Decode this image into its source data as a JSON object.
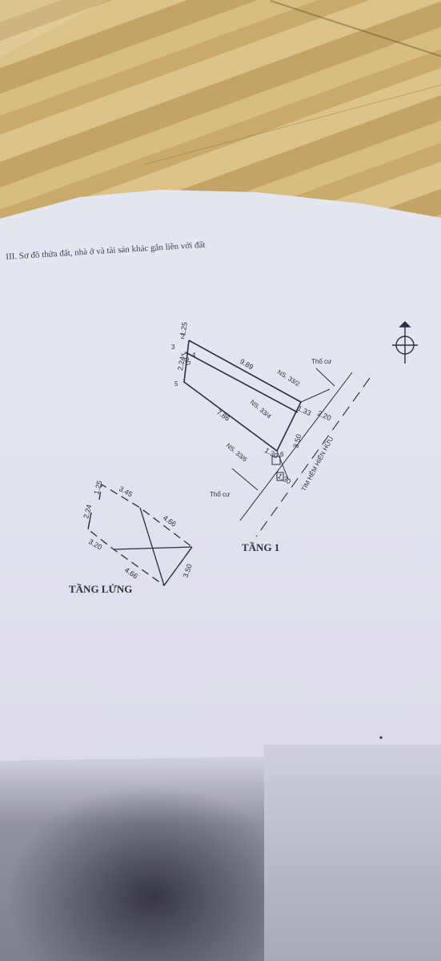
{
  "header_text": "III. Sơ đồ thửa đất, nhà ở và tài sản khác gắn liền với đất",
  "ground_floor": {
    "title": "TẦNG 1",
    "road_label": "TIM HẺM HIẾN HỮU",
    "neighbor_labels": [
      "NS. 33/2",
      "NS. 33/4",
      "NS. 33/6"
    ],
    "land_labels": [
      "Thổ cư",
      "Thổ cư"
    ],
    "vertex_labels": [
      "2",
      "3",
      "4",
      "5",
      "6"
    ],
    "dimensions": [
      "1.25",
      "1.80",
      "2.24",
      "9.89",
      "7.86",
      "1.33",
      "2.20",
      "3.50",
      "1.30",
      "1.30"
    ]
  },
  "mezzanine": {
    "title": "TẦNG LỬNG",
    "dimensions": [
      "1.25",
      "3.45",
      "2.24",
      "4.66",
      "3.20",
      "4.66",
      "3.50"
    ]
  },
  "colors": {
    "ink": "#2a2e48",
    "paper": "#e3e5ef",
    "floor": "#cfb273"
  },
  "icons": [
    "north-compass-icon"
  ]
}
